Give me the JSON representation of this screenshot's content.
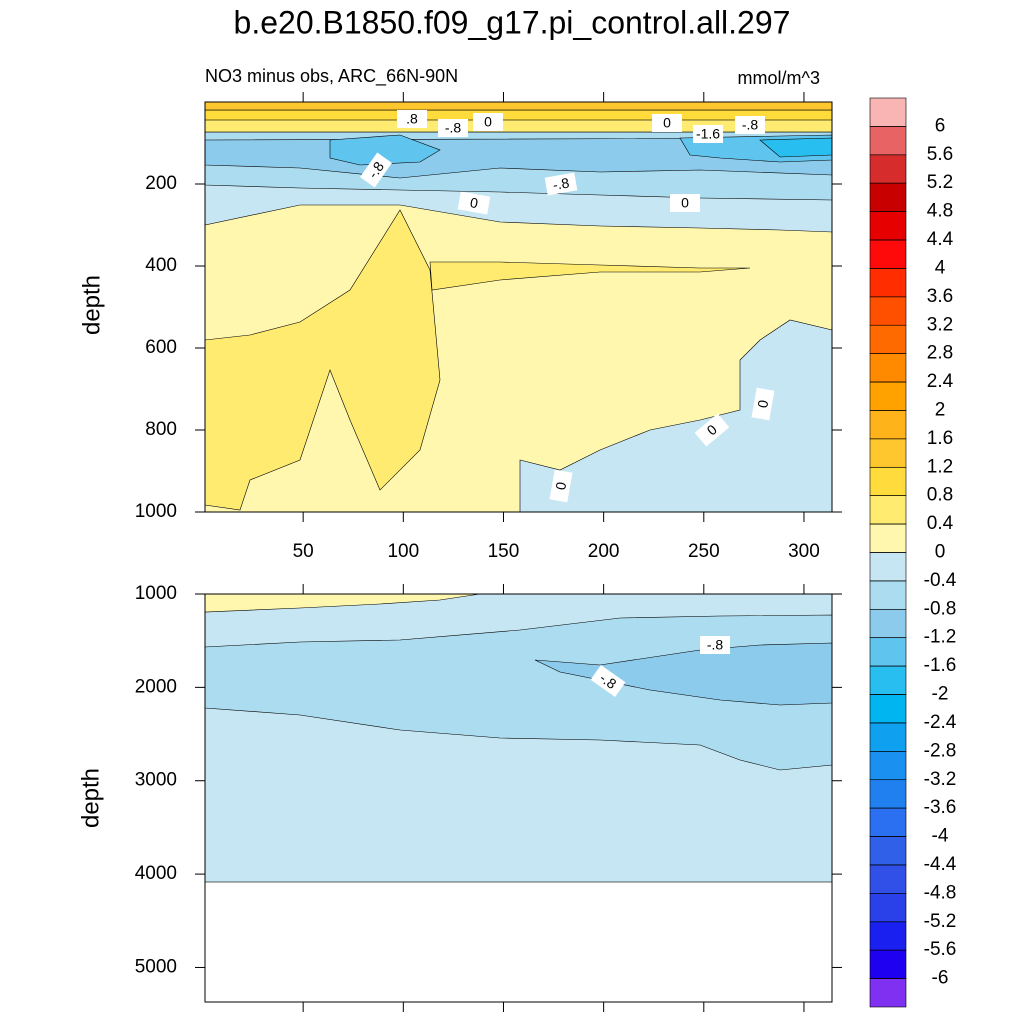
{
  "title": "b.e20.B1850.f09_g17.pi_control.all.297",
  "chart_data": [
    {
      "type": "contour",
      "subtitle": "NO3 minus obs, ARC_66N-90N",
      "units": "mmol/m^3",
      "y_label": "depth",
      "xlim": [
        1,
        314
      ],
      "xticks": [
        50,
        100,
        150,
        200,
        250,
        300
      ],
      "ylim": [
        0,
        1000
      ],
      "yticks": [
        200,
        400,
        600,
        800,
        1000
      ],
      "y_inverted": true,
      "contour_labels": [
        {
          "value": 0.8,
          "label": ".8"
        },
        {
          "value": -0.8,
          "label": "-.8"
        },
        0,
        0,
        {
          "value": -1.6,
          "label": "-1.6"
        },
        {
          "value": -0.8,
          "label": "-.8"
        },
        {
          "value": -0.8,
          "label": "-.8"
        },
        {
          "value": -0.8,
          "label": "-.8"
        },
        0,
        0,
        0,
        0,
        0
      ]
    },
    {
      "type": "contour",
      "y_label": "depth",
      "xlim": [
        1,
        314
      ],
      "xticks": [
        50,
        100,
        150,
        200,
        250,
        300
      ],
      "ylim": [
        1000,
        5370
      ],
      "yticks": [
        1000,
        2000,
        3000,
        4000,
        5000
      ],
      "y_inverted": true,
      "contour_labels": [
        {
          "value": -0.8,
          "label": "-.8"
        },
        {
          "value": -0.8,
          "label": "-.8"
        }
      ]
    }
  ],
  "colorbar": {
    "levels": [
      6,
      5.6,
      5.2,
      4.8,
      4.4,
      4,
      3.6,
      3.2,
      2.8,
      2.4,
      2,
      1.6,
      1.2,
      0.8,
      0.4,
      0,
      -0.4,
      -0.8,
      -1.2,
      -1.6,
      -2,
      -2.4,
      -2.8,
      -3.2,
      -3.6,
      -4,
      -4.4,
      -4.8,
      -5.2,
      -5.6,
      -6
    ],
    "colors": [
      "#f9b4b4",
      "#e86464",
      "#d62c2c",
      "#c80000",
      "#e60000",
      "#ff0a0a",
      "#ff2d00",
      "#ff5000",
      "#ff6a00",
      "#ff8a00",
      "#ffa200",
      "#ffb31a",
      "#ffc72e",
      "#ffdc3c",
      "#ffeb70",
      "#fff7ae",
      "#c6e6f3",
      "#acdcf0",
      "#8ccbec",
      "#5fc4ee",
      "#28bff0",
      "#00b5f0",
      "#10a0f0",
      "#1a90f0",
      "#2080f0",
      "#2a70f0",
      "#3060e8",
      "#3050e8",
      "#2a40e8",
      "#1a20f0",
      "#2000f0",
      "#8030f0"
    ]
  }
}
